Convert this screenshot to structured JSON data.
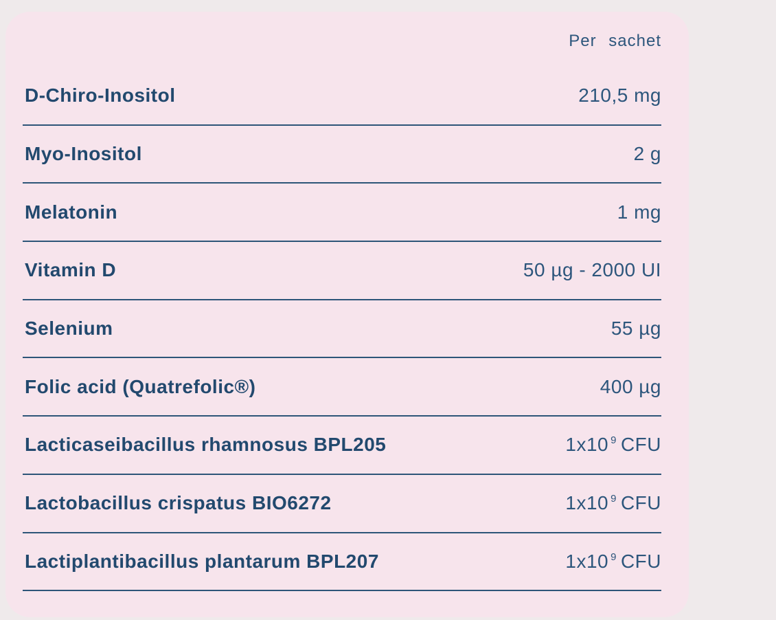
{
  "page": {
    "background_color": "#efeaeb"
  },
  "card": {
    "background_color": "#f7e4ec",
    "accent_color": "#22496e",
    "divider_color": "#2d5578",
    "header": {
      "label": "Per sachet"
    },
    "rows": [
      {
        "label": "D-Chiro-Inositol",
        "value": "210,5 mg",
        "sup": "",
        "unit": ""
      },
      {
        "label": "Myo-Inositol",
        "value": "2 g",
        "sup": "",
        "unit": ""
      },
      {
        "label": "Melatonin",
        "value": "1 mg",
        "sup": "",
        "unit": ""
      },
      {
        "label": "Vitamin D",
        "value": "50 µg - 2000 UI",
        "sup": "",
        "unit": ""
      },
      {
        "label": "Selenium",
        "value": "55 µg",
        "sup": "",
        "unit": ""
      },
      {
        "label": "Folic acid (Quatrefolic®)",
        "value": "400 µg",
        "sup": "",
        "unit": ""
      },
      {
        "label": "Lacticaseibacillus rhamnosus BPL205",
        "value": "1x10",
        "sup": "9",
        "unit": "CFU"
      },
      {
        "label": "Lactobacillus crispatus BIO6272",
        "value": "1x10",
        "sup": "9",
        "unit": "CFU"
      },
      {
        "label": "Lactiplantibacillus plantarum BPL207",
        "value": "1x10",
        "sup": "9",
        "unit": "CFU"
      }
    ]
  }
}
